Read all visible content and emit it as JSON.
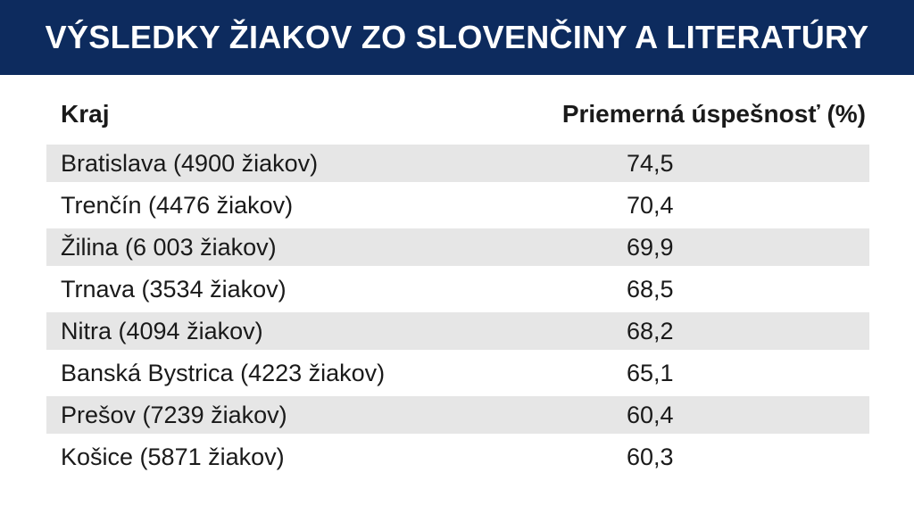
{
  "chart_data": {
    "type": "table",
    "title": "VÝSLEDKY ŽIAKOV ZO SLOVENČINY A LITERATÚRY",
    "columns": [
      "Kraj",
      "Priemerná úspešnosť  (%)"
    ],
    "rows": [
      {
        "region": "Bratislava (4900 žiakov)",
        "value": "74,5"
      },
      {
        "region": "Trenčín (4476 žiakov)",
        "value": "70,4"
      },
      {
        "region": "Žilina (6 003 žiakov)",
        "value": "69,9"
      },
      {
        "region": "Trnava (3534 žiakov)",
        "value": "68,5"
      },
      {
        "region": "Nitra (4094 žiakov)",
        "value": "68,2"
      },
      {
        "region": "Banská Bystrica (4223 žiakov)",
        "value": "65,1"
      },
      {
        "region": "Prešov (7239 žiakov)",
        "value": "60,4"
      },
      {
        "region": "Košice (5871 žiakov)",
        "value": "60,3"
      }
    ]
  },
  "colors": {
    "title_background": "#0d2b5e",
    "title_text": "#ffffff",
    "shaded_row": "#e6e6e6"
  }
}
